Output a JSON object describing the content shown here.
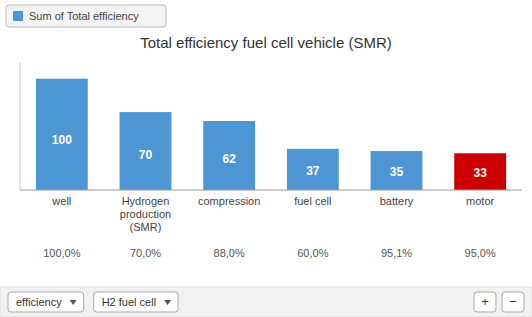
{
  "chart_data": {
    "type": "bar",
    "title": "Total efficiency fuel cell vehicle (SMR)",
    "categories": [
      "well",
      "Hydrogen\nproduction\n(SMR)",
      "compression",
      "fuel cell",
      "battery",
      "motor"
    ],
    "series": [
      {
        "name": "Sum of Total efficiency",
        "values": [
          100,
          70,
          62,
          37,
          35,
          33
        ],
        "colors": [
          "#4e96d3",
          "#4e96d3",
          "#4e96d3",
          "#4e96d3",
          "#4e96d3",
          "#cc0000"
        ]
      }
    ],
    "ylim": [
      0,
      115
    ],
    "data_labels": true,
    "tick_labels": "x",
    "legend": "top-left",
    "annotations": [
      "100,0%",
      "70,0%",
      "88,0%",
      "60,0%",
      "95,1%",
      "95,0%",
      "efficiency",
      "H2 fuel cell",
      "+",
      "−"
    ]
  }
}
